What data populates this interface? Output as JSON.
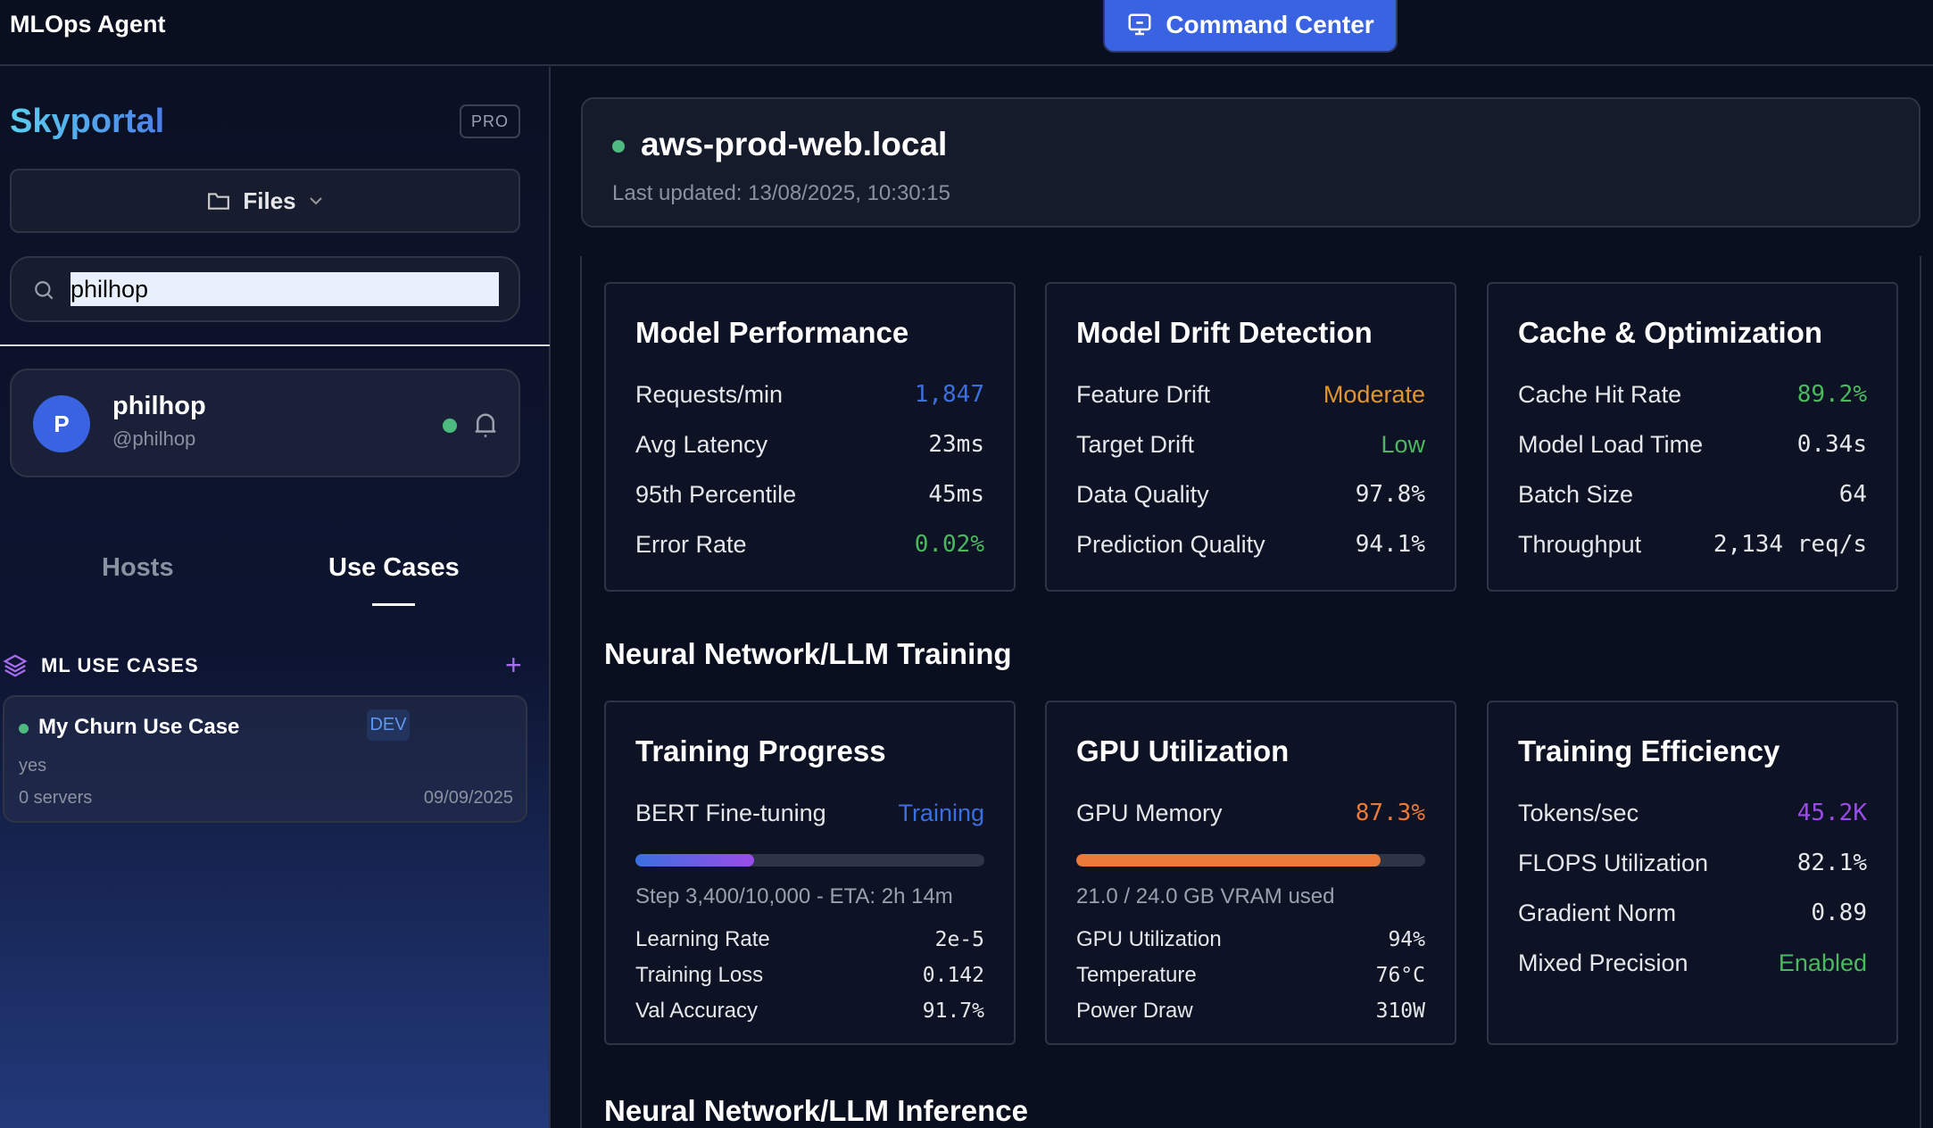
{
  "app": {
    "title": "MLOps Agent",
    "command_center": "Command Center"
  },
  "sidebar": {
    "logo": "Skyportal",
    "badge": "PRO",
    "files_label": "Files",
    "search_value": "philhop",
    "user": {
      "initial": "P",
      "name": "philhop",
      "handle": "@philhop"
    },
    "tabs": [
      {
        "label": "Hosts"
      },
      {
        "label": "Use Cases"
      }
    ],
    "section_title": "ML USE CASES",
    "use_case": {
      "name": "My Churn Use Case",
      "env": "DEV",
      "description": "yes",
      "servers": "0 servers",
      "date": "09/09/2025"
    }
  },
  "host": {
    "name": "aws-prod-web.local",
    "updated": "Last updated: 13/08/2025, 10:30:15"
  },
  "colors": {
    "blue": "#3b6fe0",
    "orange": "#e0962e",
    "green": "#4cb85f",
    "purple": "#9b4ce8",
    "red_orange": "#ea7a3a"
  },
  "cards_row1": [
    {
      "title": "Model Performance",
      "rows": [
        {
          "label": "Requests/min",
          "value": "1,847",
          "color": "#3b6fe0",
          "mono": true
        },
        {
          "label": "Avg Latency",
          "value": "23ms",
          "mono": true
        },
        {
          "label": "95th Percentile",
          "value": "45ms",
          "mono": true
        },
        {
          "label": "Error Rate",
          "value": "0.02%",
          "color": "#4cb85f",
          "mono": true
        }
      ]
    },
    {
      "title": "Model Drift Detection",
      "rows": [
        {
          "label": "Feature Drift",
          "value": "Moderate",
          "color": "#e0962e"
        },
        {
          "label": "Target Drift",
          "value": "Low",
          "color": "#4cb85f"
        },
        {
          "label": "Data Quality",
          "value": "97.8%",
          "mono": true
        },
        {
          "label": "Prediction Quality",
          "value": "94.1%",
          "mono": true
        }
      ]
    },
    {
      "title": "Cache & Optimization",
      "rows": [
        {
          "label": "Cache Hit Rate",
          "value": "89.2%",
          "color": "#4cb85f",
          "mono": true
        },
        {
          "label": "Model Load Time",
          "value": "0.34s",
          "mono": true
        },
        {
          "label": "Batch Size",
          "value": "64",
          "mono": true
        },
        {
          "label": "Throughput",
          "value": "2,134 req/s",
          "mono": true
        }
      ]
    }
  ],
  "training_section": "Neural Network/LLM Training",
  "training": {
    "title": "Training Progress",
    "job": "BERT Fine-tuning",
    "status": "Training",
    "progress_percent": 34,
    "step": "Step 3,400/10,000 - ETA: 2h 14m",
    "rows": [
      {
        "label": "Learning Rate",
        "value": "2e-5"
      },
      {
        "label": "Training Loss",
        "value": "0.142"
      },
      {
        "label": "Val Accuracy",
        "value": "91.7%"
      }
    ]
  },
  "gpu": {
    "title": "GPU Utilization",
    "label": "GPU Memory",
    "value": "87.3%",
    "progress_percent": 87.3,
    "vram": "21.0 / 24.0 GB VRAM used",
    "rows": [
      {
        "label": "GPU Utilization",
        "value": "94%"
      },
      {
        "label": "Temperature",
        "value": "76°C"
      },
      {
        "label": "Power Draw",
        "value": "310W"
      }
    ]
  },
  "efficiency": {
    "title": "Training Efficiency",
    "rows": [
      {
        "label": "Tokens/sec",
        "value": "45.2K",
        "color": "#9b4ce8",
        "mono": true
      },
      {
        "label": "FLOPS Utilization",
        "value": "82.1%",
        "mono": true
      },
      {
        "label": "Gradient Norm",
        "value": "0.89",
        "mono": true
      },
      {
        "label": "Mixed Precision",
        "value": "Enabled",
        "color": "#4cb85f"
      }
    ]
  },
  "inference_section": "Neural Network/LLM Inference"
}
